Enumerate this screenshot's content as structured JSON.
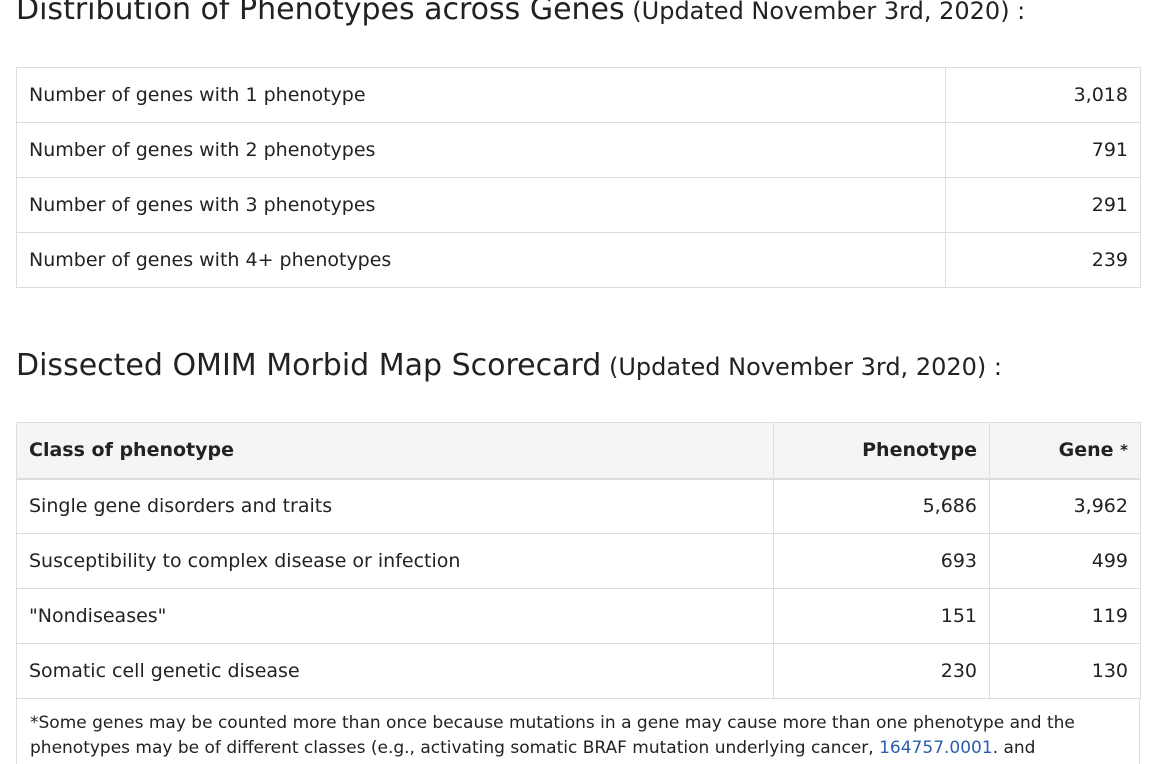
{
  "distribution": {
    "title": "Distribution of Phenotypes across Genes",
    "updated": "(Updated November 3rd, 2020) :",
    "rows": [
      {
        "label": "Number of genes with 1 phenotype",
        "value": "3,018"
      },
      {
        "label": "Number of genes with 2 phenotypes",
        "value": "791"
      },
      {
        "label": "Number of genes with 3 phenotypes",
        "value": "291"
      },
      {
        "label": "Number of genes with 4+ phenotypes",
        "value": "239"
      }
    ]
  },
  "scorecard": {
    "title": "Dissected OMIM Morbid Map Scorecard",
    "updated": "(Updated November 3rd, 2020) :",
    "headers": {
      "class": "Class of phenotype",
      "phenotype": "Phenotype",
      "gene": "Gene",
      "gene_mark": "*"
    },
    "rows": [
      {
        "label": "Single gene disorders and traits",
        "phenotype": "5,686",
        "gene": "3,962"
      },
      {
        "label": "Susceptibility to complex disease or infection",
        "phenotype": "693",
        "gene": "499"
      },
      {
        "label": "\"Nondiseases\"",
        "phenotype": "151",
        "gene": "119"
      },
      {
        "label": "Somatic cell genetic disease",
        "phenotype": "230",
        "gene": "130"
      }
    ],
    "footnote": {
      "text_before": "*Some genes may be counted more than once because mutations in a gene may cause more than one phenotype and the phenotypes may be of different classes (e.g., activating somatic BRAF mutation underlying cancer, ",
      "link": "164757.0001",
      "text_after": ". and"
    }
  }
}
